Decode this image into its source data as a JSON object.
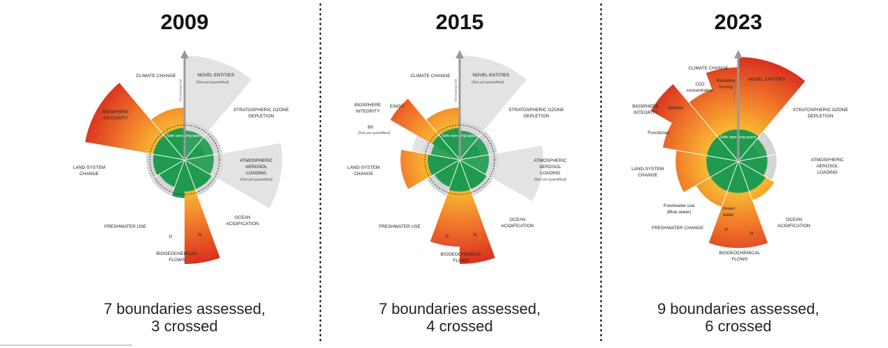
{
  "panels": [
    {
      "year": "2009",
      "center_label": "Safe operating space",
      "axis_label": "Increasing risk",
      "labels": [
        {
          "lines": [
            "CLIMATE CHANGE"
          ]
        },
        {
          "lines": [
            "NOVEL ENTITIES"
          ]
        },
        {
          "lines": [
            "(Not yet quantified)"
          ]
        },
        {
          "lines": [
            "STRATOSPHERIC OZONE",
            "DEPLETION"
          ]
        },
        {
          "lines": [
            "ATMOSPHERIC",
            "AEROSOL",
            "LOADING"
          ]
        },
        {
          "lines": [
            "(Not yet quantified)"
          ]
        },
        {
          "lines": [
            "OCEAN",
            "ACIDIFICATION"
          ]
        },
        {
          "lines": [
            "BIOGEOCHEMICAL",
            "FLOWS"
          ]
        },
        {
          "lines": [
            "P"
          ]
        },
        {
          "lines": [
            "N"
          ]
        },
        {
          "lines": [
            "FRESHWATER USE"
          ]
        },
        {
          "lines": [
            "LAND-SYSTEM",
            "CHANGE"
          ]
        },
        {
          "lines": [
            "BIOSPHERE",
            "INTEGRITY"
          ]
        }
      ],
      "caption": [
        "7 boundaries assessed,",
        "3 crossed"
      ]
    },
    {
      "year": "2015",
      "center_label": "Safe operating space",
      "axis_label": "Increasing risk",
      "labels": [
        {
          "lines": [
            "CLIMATE CHANGE"
          ]
        },
        {
          "lines": [
            "NOVEL ENTITIES"
          ]
        },
        {
          "lines": [
            "(Not yet quantified)"
          ]
        },
        {
          "lines": [
            "STRATOSPHERIC OZONE",
            "DEPLETION"
          ]
        },
        {
          "lines": [
            "ATMOSPHERIC",
            "AEROSOL",
            "LOADING"
          ]
        },
        {
          "lines": [
            "(Not yet quantified)"
          ]
        },
        {
          "lines": [
            "OCEAN",
            "ACIDIFICATION"
          ]
        },
        {
          "lines": [
            "BIOGEOCHEMICAL",
            "FLOWS"
          ]
        },
        {
          "lines": [
            "P"
          ]
        },
        {
          "lines": [
            "N"
          ]
        },
        {
          "lines": [
            "FRESHWATER USE"
          ]
        },
        {
          "lines": [
            "LAND-SYSTEM",
            "CHANGE"
          ]
        },
        {
          "lines": [
            "BIOSPHERE",
            "INTEGRITY"
          ]
        },
        {
          "lines": [
            "E/MSY"
          ]
        },
        {
          "lines": [
            "BII"
          ]
        },
        {
          "lines": [
            "(Not yet quantified)"
          ]
        }
      ],
      "caption": [
        "7 boundaries assessed,",
        "4 crossed"
      ]
    },
    {
      "year": "2023",
      "center_label": "Safe operating space",
      "axis_label": "Increasing risk",
      "labels": [
        {
          "lines": [
            "CLIMATE CHANGE"
          ]
        },
        {
          "lines": [
            "CO2",
            "concentration"
          ]
        },
        {
          "lines": [
            "Radiative",
            "forcing"
          ]
        },
        {
          "lines": [
            "NOVEL ENTITIES"
          ]
        },
        {
          "lines": [
            "STRATOSPHERIC OZONE",
            "DEPLETION"
          ]
        },
        {
          "lines": [
            "ATMOSPHERIC",
            "AEROSOL",
            "LOADING"
          ]
        },
        {
          "lines": [
            "OCEAN",
            "ACIDIFICATION"
          ]
        },
        {
          "lines": [
            "BIOGEOCHEMICAL",
            "FLOWS"
          ]
        },
        {
          "lines": [
            "P"
          ]
        },
        {
          "lines": [
            "N"
          ]
        },
        {
          "lines": [
            "Green",
            "water"
          ]
        },
        {
          "lines": [
            "Freshwater use",
            "(Blue water)"
          ]
        },
        {
          "lines": [
            "FRESHWATER CHANGE"
          ]
        },
        {
          "lines": [
            "LAND-SYSTEM",
            "CHANGE"
          ]
        },
        {
          "lines": [
            "BIOSPHERE",
            "INTEGRITY"
          ]
        },
        {
          "lines": [
            "Genetic"
          ]
        },
        {
          "lines": [
            "Functional"
          ]
        }
      ],
      "caption": [
        "9 boundaries assessed,",
        "6 crossed"
      ]
    }
  ]
}
